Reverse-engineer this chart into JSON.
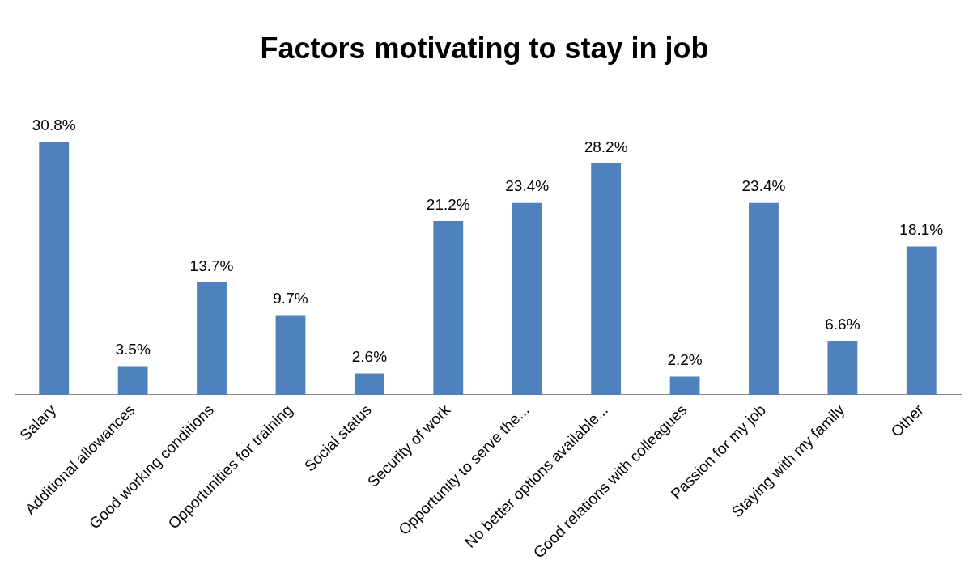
{
  "chart_data": {
    "type": "bar",
    "title": "Factors motivating to stay in job",
    "categories": [
      "Salary",
      "Additional allowances",
      "Good working conditions",
      "Opportunities for training",
      "Social status",
      "Security of work",
      "Opportunity to serve the...",
      "No better options available...",
      "Good relations with colleagues",
      "Passion for my job",
      "Staying with my family",
      "Other"
    ],
    "values": [
      30.8,
      3.5,
      13.7,
      9.7,
      2.6,
      21.2,
      23.4,
      28.2,
      2.2,
      23.4,
      6.6,
      18.1
    ],
    "value_labels": [
      "30.8%",
      "3.5%",
      "13.7%",
      "9.7%",
      "2.6%",
      "21.2%",
      "23.4%",
      "28.2%",
      "2.2%",
      "23.4%",
      "6.6%",
      "18.1%"
    ],
    "color": "#4f81bd",
    "relative": false,
    "grid": false,
    "legend": false
  }
}
